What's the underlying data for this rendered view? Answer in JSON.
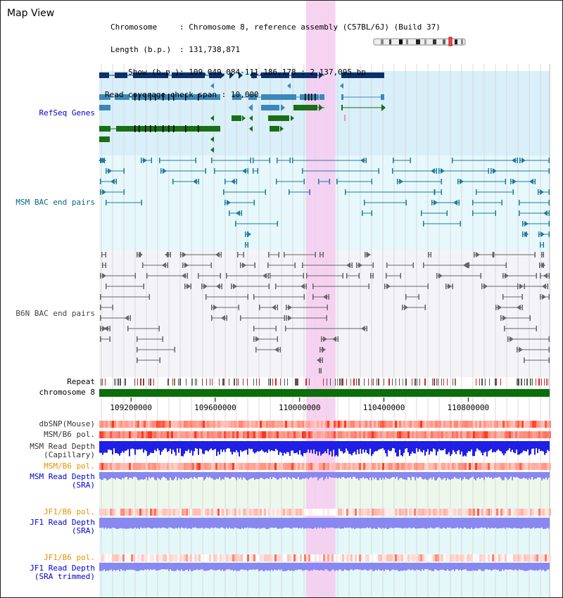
{
  "title": "Map View",
  "info": {
    "chromosome_label": "Chromosome",
    "chromosome_value": "Chromosome 8, reference assembly (C57BL/6J) (Build 37)",
    "length_label": "Length (b.p.)",
    "length_value": "131,738,871",
    "show_label": "Show (b.p.)",
    "show_value": "109,049,084-111,186,178 : 2,137,095 bp",
    "coverage_label": "Read coverage check span",
    "coverage_value": "10,000"
  },
  "view": {
    "start": 109049084,
    "end": 111186178
  },
  "highlight": {
    "start": 110030000,
    "end": 110170000
  },
  "ruler_ticks": [
    109200000,
    109600000,
    110000000,
    110400000,
    110800000
  ],
  "tracks": {
    "refseq": "RefSeq Genes",
    "msm_bac": "MSM BAC end pairs",
    "b6n_bac": "B6N BAC end pairs",
    "repeat": "Repeat",
    "chromosome": "chromosome 8",
    "dbsnp": "dbSNP(Mouse)",
    "msm_b6_pol": "MSM/B6 pol.",
    "msm_depth_cap_1": "MSM Read Depth",
    "msm_depth_cap_2": "(Capillary)",
    "msm_b6_pol_orange": "MSM/B6 pol.",
    "msm_depth_sra_1": "MSM Read Depth",
    "msm_depth_sra_2": "(SRA)",
    "jf1_b6_pol": "JF1/B6 pol.",
    "jf1_depth_1": "JF1 Read Depth",
    "jf1_depth_2": "(SRA)",
    "jf1_b6_pol_2": "JF1/B6 pol.",
    "jf1_depth_trim_1": "JF1 Read Depth",
    "jf1_depth_trim_2": "(SRA trimmed)"
  },
  "colors": {
    "refseq_dark": "#0b2f66",
    "refseq_mid": "#3b88b8",
    "refseq_green": "#1a6e14",
    "msm_bac": "#1f7aa0",
    "b6n_bac": "#666666",
    "highlight": "#f6cbf0",
    "depth_blue": "#1f1fe6",
    "depth_lavender": "#8888f0",
    "chromosome_bar": "#0a6e0a",
    "label_blue": "#0000cc",
    "label_teal": "#006688",
    "label_orange": "#e89000"
  }
}
